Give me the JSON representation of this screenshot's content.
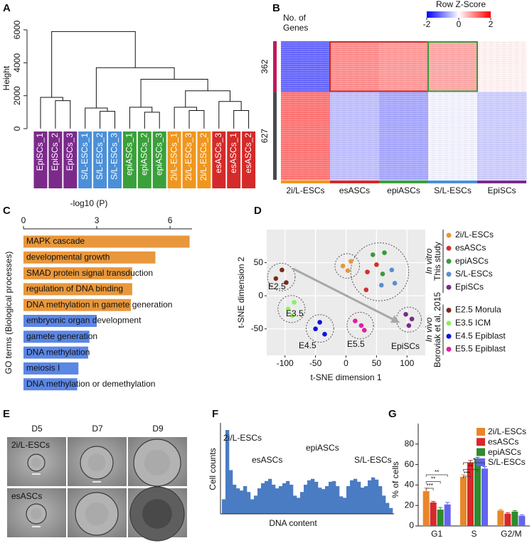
{
  "panels": [
    "A",
    "B",
    "C",
    "D",
    "E",
    "F",
    "G"
  ],
  "chart_data": [
    {
      "type": "dendrogram",
      "ylabel": "Height",
      "ylim": [
        0,
        6000
      ],
      "yticks": [
        0,
        2000,
        4000,
        6000
      ],
      "leaves": [
        "EpiSCs_1",
        "EpiSCs_2",
        "EpiSCs_3",
        "S/L-ESCs_1",
        "S/L-ESCs_2",
        "S/L-ESCs_3",
        "epiASCs_1",
        "epiASCs_2",
        "epiASCs_3",
        "2i/L-ESCs_1",
        "2i/L-ESCs_3",
        "2i/L-ESCs_2",
        "esASCs_3",
        "esASCs_1",
        "esASCs_2"
      ],
      "leaf_colors": [
        "#7b2a8a",
        "#7b2a8a",
        "#7b2a8a",
        "#4a90d9",
        "#4a90d9",
        "#4a90d9",
        "#3aa03a",
        "#3aa03a",
        "#3aa03a",
        "#f0961e",
        "#f0961e",
        "#f0961e",
        "#d42a2a",
        "#d42a2a",
        "#d42a2a"
      ],
      "merges": [
        [
          1,
          2,
          1700
        ],
        [
          0,
          15,
          1900
        ],
        [
          4,
          5,
          1050
        ],
        [
          3,
          17,
          1250
        ],
        [
          7,
          8,
          1000
        ],
        [
          6,
          19,
          1300
        ],
        [
          10,
          11,
          1100
        ],
        [
          9,
          21,
          1300
        ],
        [
          13,
          14,
          1100
        ],
        [
          12,
          23,
          1650
        ],
        [
          22,
          24,
          2300
        ],
        [
          20,
          25,
          3000
        ],
        [
          18,
          26,
          3700
        ],
        [
          16,
          27,
          5900
        ]
      ]
    },
    {
      "type": "heatmap",
      "row_header": "No. of Genes",
      "legend_title": "Row Z-Score",
      "colorscale": [
        "#0000ff",
        "#ffffff",
        "#ff0000"
      ],
      "clim": [
        -2,
        2
      ],
      "cticks": [
        -2,
        0,
        2
      ],
      "rows": [
        362,
        627
      ],
      "row_colors": [
        "#c2185b",
        "#4a4a4a"
      ],
      "columns": [
        "2i/L-ESCs",
        "esASCs",
        "epiASCs",
        "S/L-ESCs",
        "EpiSCs"
      ],
      "column_colors": [
        "#f0961e",
        "#d42a2a",
        "#3aa03a",
        "#4a90d9",
        "#7b2a8a"
      ],
      "values": [
        [
          -1.2,
          0.9,
          0.8,
          0.7,
          0.1
        ],
        [
          1.1,
          -0.5,
          -0.7,
          -0.1,
          -0.4
        ]
      ]
    },
    {
      "type": "barh",
      "xlabel": "-log10 (P)",
      "ylabel": "GO terms (Biological processes)",
      "xlim": [
        0,
        6.9
      ],
      "xticks": [
        0,
        3,
        6
      ],
      "categories": [
        "MAPK cascade",
        "developmental growth",
        "SMAD protein signal transduction",
        "regulation of DNA binding",
        "DNA methylation in gamete generation",
        "embryonic organ development",
        "gamete generation",
        "DNA methylation",
        "meiosis I",
        "DNA methylation or demethylation"
      ],
      "values": [
        6.8,
        5.4,
        4.45,
        4.45,
        4.4,
        3.0,
        2.7,
        2.65,
        2.25,
        2.2
      ],
      "colors": [
        "#e8973c",
        "#e8973c",
        "#e8973c",
        "#e8973c",
        "#e8973c",
        "#5b86e5",
        "#5b86e5",
        "#5b86e5",
        "#5b86e5",
        "#5b86e5"
      ]
    },
    {
      "type": "scatter",
      "xlabel": "t-SNE dimension 1",
      "ylabel": "t-SNE dimension 2",
      "xlim": [
        -130,
        130
      ],
      "xticks": [
        -100,
        -50,
        0,
        50,
        100
      ],
      "ylim": [
        -90,
        100
      ],
      "yticks": [
        -50,
        0,
        50
      ],
      "grid": true,
      "annotations": [
        "E2.5",
        "E3.5",
        "E4.5",
        "E5.5",
        "EpiSCs"
      ],
      "series_groups": [
        {
          "label": "In vitro",
          "source": "This study",
          "series": [
            {
              "name": "2i/L-ESCs",
              "color": "#e8963a",
              "x": [
                -5,
                8,
                3
              ],
              "y": [
                45,
                52,
                38
              ]
            },
            {
              "name": "esASCs",
              "color": "#d03030",
              "x": [
                35,
                50,
                33
              ],
              "y": [
                36,
                47,
                9
              ]
            },
            {
              "name": "epiASCs",
              "color": "#3a9a3a",
              "x": [
                44,
                63,
                60
              ],
              "y": [
                62,
                65,
                33
              ]
            },
            {
              "name": "S/L-ESCs",
              "color": "#5a8fd0",
              "x": [
                75,
                80,
                58
              ],
              "y": [
                39,
                19,
                16
              ]
            },
            {
              "name": "EpiSCs",
              "color": "#7a2a8a",
              "x": [
                98,
                108,
                103
              ],
              "y": [
                -28,
                -35,
                -45
              ]
            }
          ]
        },
        {
          "label": "In vivo",
          "source": "Boroviak et al, 2015",
          "series": [
            {
              "name": "E2.5 Morula",
              "color": "#7a2a1a",
              "x": [
                -115,
                -105,
                -98
              ],
              "y": [
                26,
                39,
                20
              ]
            },
            {
              "name": "E3.5 ICM",
              "color": "#8ef060",
              "x": [
                -95,
                -85,
                -88
              ],
              "y": [
                -20,
                -10,
                -30
              ]
            },
            {
              "name": "E4.5 Epiblast",
              "color": "#1010e0",
              "x": [
                -50,
                -43,
                -35
              ],
              "y": [
                -50,
                -40,
                -58
              ]
            },
            {
              "name": "E5.5 Epiblast",
              "color": "#e020a0",
              "x": [
                15,
                25,
                30
              ],
              "y": [
                -38,
                -45,
                -52
              ]
            }
          ]
        }
      ]
    },
    {
      "type": "image_grid",
      "columns": [
        "D5",
        "D7",
        "D9"
      ],
      "rows": [
        "2i/L-ESCs",
        "esASCs"
      ]
    },
    {
      "type": "histogram",
      "ylabel": "Cell counts",
      "xlabel": "DNA content",
      "color": "#4a7cc4",
      "annotations": [
        "2i/L-ESCs",
        "esASCs",
        "epiASCs",
        "S/L-ESCs"
      ],
      "values": [
        20,
        115,
        60,
        40,
        35,
        32,
        38,
        30,
        20,
        25,
        35,
        42,
        45,
        48,
        40,
        35,
        38,
        42,
        45,
        40,
        25,
        22,
        30,
        40,
        46,
        48,
        44,
        36,
        34,
        38,
        44,
        45,
        38,
        24,
        22,
        38,
        46,
        48,
        44,
        36,
        38,
        46,
        50,
        47,
        38,
        25,
        15,
        8
      ]
    },
    {
      "type": "bar",
      "ylabel": "% of cells",
      "ylim": [
        0,
        100
      ],
      "yticks": [
        0,
        20,
        40,
        60,
        80
      ],
      "categories": [
        "G1",
        "S",
        "G2/M"
      ],
      "series": [
        {
          "name": "2i/L-ESCs",
          "color": "#e8862a",
          "values": [
            34,
            48,
            15
          ],
          "errors": [
            3,
            2,
            1
          ]
        },
        {
          "name": "esASCs",
          "color": "#d7282a",
          "values": [
            23,
            62,
            12
          ],
          "errors": [
            1,
            2,
            1
          ]
        },
        {
          "name": "epiASCs",
          "color": "#2e8b2e",
          "values": [
            16,
            66,
            14
          ],
          "errors": [
            2,
            1,
            1
          ]
        },
        {
          "name": "S/L-ESCs",
          "color": "#6464f0",
          "values": [
            21,
            56,
            10
          ],
          "errors": [
            2,
            2,
            1
          ]
        }
      ],
      "annotations": [
        "**",
        "**",
        "***",
        "*",
        "**",
        "***"
      ]
    }
  ]
}
